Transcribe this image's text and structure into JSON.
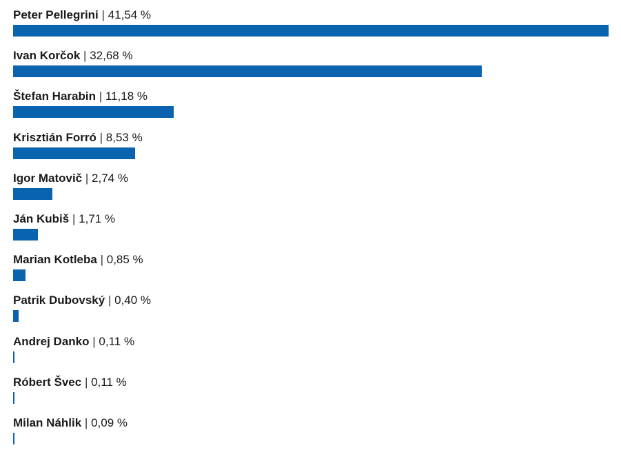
{
  "chart_data": {
    "type": "bar",
    "orientation": "horizontal",
    "color": "#0a63ae",
    "categories": [
      "Peter Pellegrini",
      "Ivan Korčok",
      "Štefan Harabin",
      "Krisztián Forró",
      "Igor Matovič",
      "Ján Kubiš",
      "Marian Kotleba",
      "Patrik Dubovský",
      "Andrej Danko",
      "Róbert Švec",
      "Milan Náhlik"
    ],
    "values": [
      41.54,
      32.68,
      11.18,
      8.53,
      2.74,
      1.71,
      0.85,
      0.4,
      0.11,
      0.11,
      0.09
    ],
    "value_labels": [
      "41,54 %",
      "32,68 %",
      "11,18 %",
      "8,53 %",
      "2,74 %",
      "1,71 %",
      "0,85 %",
      "0,40 %",
      "0,11 %",
      "0,11 %",
      "0,09 %"
    ],
    "separator": "|",
    "xlim": [
      0,
      41.54
    ],
    "grid": false,
    "legend": "none"
  }
}
